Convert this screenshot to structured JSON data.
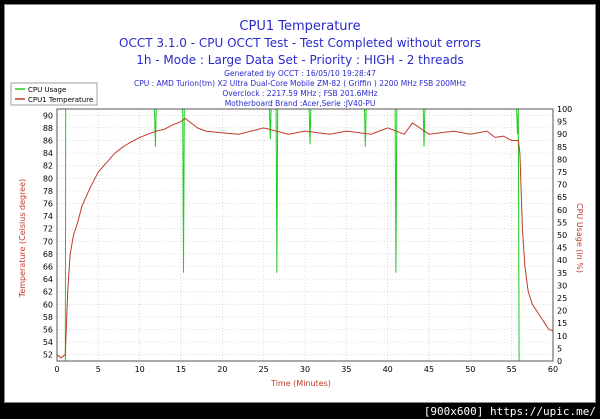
{
  "footer": "[900x600] https://upic.me/",
  "colors": {
    "temperature": "#c0392b",
    "cpu_usage": "#22cc22",
    "text": "#2a2acc"
  },
  "chart_data": {
    "type": "line",
    "title": "CPU1 Temperature",
    "subtitle_lines": [
      "OCCT 3.1.0 - CPU OCCT Test - Test Completed without errors",
      "1h - Mode : Large Data Set - Priority : HIGH - 2 threads"
    ],
    "info_lines": [
      "Generated by OCCT : 16/05/10 19:28:47",
      "CPU : AMD Turion(tm) X2 Ultra Dual-Core Mobile ZM-82 ( Griffin ) 2200 MHz FSB 200MHz",
      "Overclock : 2217.59 MHz ; FSB 201.6MHz",
      "Motherboard Brand :Acer,Serie :JV40-PU"
    ],
    "xlabel": "Time (Minutes)",
    "ylabel": "Temperature (Celsius degree)",
    "y2label": "CPU Usage (in %)",
    "xlim": [
      0,
      60
    ],
    "ylim": [
      51,
      91
    ],
    "y2lim": [
      0,
      100
    ],
    "x_ticks": [
      0,
      5,
      10,
      15,
      20,
      25,
      30,
      35,
      40,
      45,
      50,
      55,
      60
    ],
    "y_ticks": [
      52,
      54,
      56,
      58,
      60,
      62,
      64,
      66,
      68,
      70,
      72,
      74,
      76,
      78,
      80,
      82,
      84,
      86,
      88,
      90
    ],
    "y2_ticks": [
      0,
      5,
      10,
      15,
      20,
      25,
      30,
      35,
      40,
      45,
      50,
      55,
      60,
      65,
      70,
      75,
      80,
      85,
      90,
      95,
      100
    ],
    "legend_position": "top-left",
    "grid": true,
    "series": [
      {
        "name": "CPU Usage",
        "axis": "right",
        "x": [
          0,
          1.0,
          1.05,
          1.2,
          1.3,
          11.8,
          11.9,
          12.0,
          12.1,
          15.2,
          15.3,
          15.4,
          15.5,
          25.7,
          25.8,
          25.9,
          26.0,
          26.5,
          26.6,
          26.7,
          26.8,
          30.5,
          30.6,
          30.7,
          30.8,
          37.2,
          37.3,
          37.4,
          37.5,
          40.9,
          41.0,
          41.1,
          41.2,
          44.3,
          44.4,
          44.5,
          44.6,
          55.6,
          55.7,
          55.8,
          55.9,
          56.0,
          56.1,
          60
        ],
        "y": [
          0,
          0,
          100,
          100,
          100,
          100,
          85,
          100,
          100,
          100,
          35,
          100,
          100,
          100,
          88,
          100,
          100,
          100,
          35,
          100,
          100,
          100,
          86,
          100,
          100,
          100,
          85,
          100,
          100,
          100,
          35,
          100,
          100,
          100,
          85,
          100,
          100,
          100,
          90,
          100,
          0,
          0,
          0,
          0
        ]
      },
      {
        "name": "CPU1 Temperature",
        "axis": "left",
        "x": [
          0,
          0.5,
          1.0,
          1.3,
          1.6,
          2,
          2.5,
          3,
          3.5,
          4,
          5,
          6,
          7,
          8,
          9,
          10,
          11,
          12,
          13,
          14,
          15,
          15.5,
          16,
          17,
          18,
          20,
          22,
          25,
          28,
          30,
          33,
          35,
          38,
          40,
          42,
          43,
          45,
          48,
          50,
          52,
          53,
          54,
          55,
          55.8,
          56.0,
          56.3,
          56.6,
          57,
          57.5,
          58,
          58.5,
          59,
          59.5,
          60
        ],
        "y": [
          52,
          51.5,
          52,
          62,
          68,
          71,
          73,
          75.5,
          77,
          78.5,
          81,
          82.5,
          84,
          85,
          85.8,
          86.5,
          87,
          87.5,
          87.8,
          88.5,
          89,
          89.5,
          89,
          88,
          87.5,
          87.2,
          87,
          88,
          87,
          87.5,
          87,
          87.5,
          87,
          88,
          87,
          88.8,
          87,
          87.5,
          87,
          87.5,
          86.5,
          86.7,
          86,
          86,
          84,
          72,
          66,
          62,
          60,
          59,
          58,
          57,
          56,
          55.8
        ]
      }
    ]
  }
}
